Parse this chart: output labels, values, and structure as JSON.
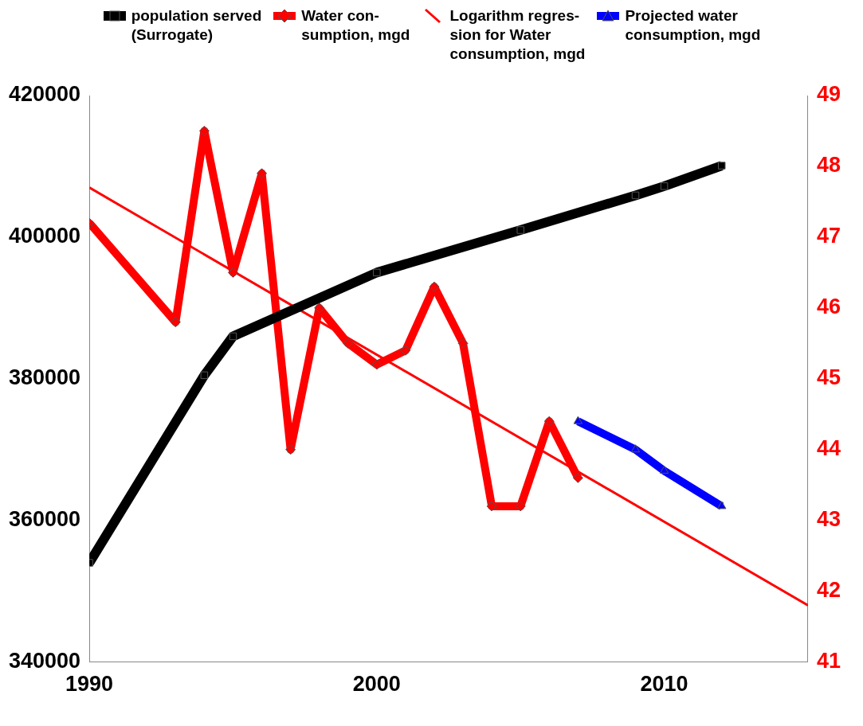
{
  "chart_data": {
    "type": "line",
    "legend": "top",
    "grid": false,
    "xlim": [
      1990,
      2015
    ],
    "xticks": [
      1990,
      2000,
      2010
    ],
    "ylim": [
      340000,
      420000
    ],
    "yticks": [
      340000,
      360000,
      380000,
      400000,
      420000
    ],
    "y2lim": [
      41,
      49
    ],
    "y2ticks": [
      41,
      42,
      43,
      44,
      45,
      46,
      47,
      48,
      49
    ],
    "series": [
      {
        "name": "population served\n(Surrogate)",
        "color": "#000000",
        "marker": "square",
        "x": [
          1990,
          1994,
          1995,
          2000,
          2005,
          2009,
          2010,
          2012
        ],
        "values": [
          354000,
          380500,
          386000,
          395000,
          401000,
          405900,
          407200,
          410100
        ]
      },
      {
        "name": "Water con-\nsumption, mgd",
        "color": "#ff0000",
        "marker": "diamond",
        "axis": "y2",
        "x": [
          1990,
          1993,
          1994,
          1995,
          1996,
          1997,
          1998,
          1999,
          2000,
          2001,
          2002,
          2003,
          2004,
          2005,
          2006,
          2007
        ],
        "values": [
          47.2,
          45.8,
          48.5,
          46.5,
          47.9,
          44.0,
          46.0,
          45.5,
          45.2,
          45.4,
          46.3,
          45.5,
          43.2,
          43.2,
          44.4,
          43.6
        ]
      },
      {
        "name": "Logarithm regres-\nsion for Water\nconsumption, mgd",
        "color": "#ff0000",
        "marker": "none",
        "axis": "y2",
        "x": [
          1990,
          2015
        ],
        "values": [
          47.7,
          41.8
        ]
      },
      {
        "name": "Projected water\nconsumption, mgd",
        "color": "#0000ff",
        "marker": "triangle",
        "axis": "y2",
        "x": [
          2007,
          2009,
          2010,
          2012
        ],
        "values": [
          44.4,
          44.0,
          43.7,
          43.2
        ]
      }
    ]
  }
}
